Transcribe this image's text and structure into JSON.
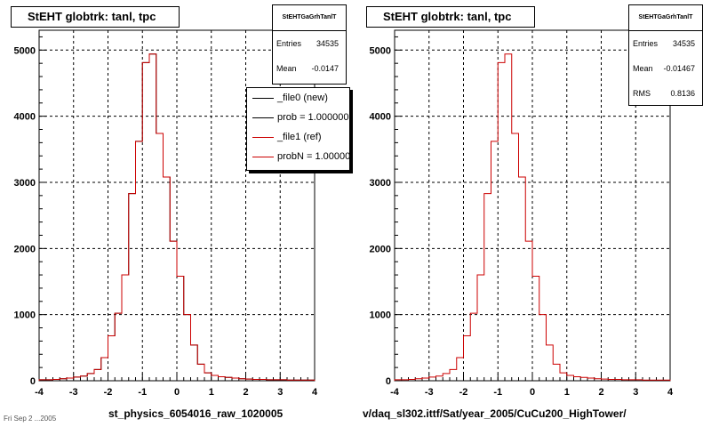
{
  "footer": "Fri Sep  2 ...2005",
  "panels": [
    {
      "title": "StEHT globtrk: tanl, tpc",
      "stats": {
        "name": "StEHTGaGrhTanlT",
        "rows": [
          {
            "label": "Entries",
            "value": "34535"
          },
          {
            "label": "Mean",
            "value": "-0.0147"
          }
        ]
      },
      "legend": [
        {
          "label": "_file0 (new)",
          "color": "#000000"
        },
        {
          "label": "prob = 1.000000",
          "color": "#000000"
        },
        {
          "label": "_file1 (ref)",
          "color": "#cc0000"
        },
        {
          "label": "probN = 1.000000",
          "color": "#cc0000"
        }
      ],
      "xlabel": "st_physics_6054016_raw_1020005"
    },
    {
      "title": "StEHT globtrk: tanl, tpc",
      "stats": {
        "name": "StEHTGaGrhTanlT",
        "rows": [
          {
            "label": "Entries",
            "value": "34535"
          },
          {
            "label": "Mean",
            "value": "-0.01467"
          },
          {
            "label": "RMS",
            "value": "0.8136"
          }
        ]
      },
      "legend": [],
      "xlabel": "v/daq_sl302.ittf/Sat/year_2005/CuCu200_HighTower/"
    }
  ],
  "chart_data": [
    {
      "type": "histogram",
      "title": "StEHT globtrk: tanl, tpc",
      "xlabel": "st_physics_6054016_raw_1020005",
      "xlim": [
        -4,
        4
      ],
      "ylim": [
        0,
        5300
      ],
      "xticks": [
        -4,
        -3,
        -2,
        -1,
        0,
        1,
        2,
        3,
        4
      ],
      "yticks": [
        0,
        1000,
        2000,
        3000,
        4000,
        5000
      ],
      "grid": true,
      "bin_edges": [
        -4.0,
        -3.8,
        -3.6,
        -3.4,
        -3.2,
        -3.0,
        -2.8,
        -2.6,
        -2.4,
        -2.2,
        -2.0,
        -1.8,
        -1.6,
        -1.4,
        -1.2,
        -1.0,
        -0.8,
        -0.6,
        -0.4,
        -0.2,
        0.0,
        0.2,
        0.4,
        0.6,
        0.8,
        1.0,
        1.2,
        1.4,
        1.6,
        1.8,
        2.0,
        2.2,
        2.4,
        2.6,
        2.8,
        3.0,
        3.2,
        3.4,
        3.6,
        3.8,
        4.0
      ],
      "series": [
        {
          "name": "_file0 (new)",
          "color": "#000000",
          "values": [
            15,
            15,
            20,
            30,
            40,
            55,
            70,
            110,
            170,
            350,
            680,
            1020,
            1600,
            2830,
            3620,
            4810,
            4940,
            3740,
            3080,
            2110,
            1580,
            1000,
            540,
            250,
            120,
            80,
            60,
            50,
            40,
            30,
            25,
            20,
            20,
            15,
            15,
            15,
            10,
            10,
            10,
            10
          ]
        },
        {
          "name": "_file1 (ref)",
          "color": "#cc0000",
          "values": [
            15,
            15,
            20,
            30,
            40,
            55,
            70,
            110,
            170,
            350,
            680,
            1020,
            1600,
            2830,
            3620,
            4810,
            4940,
            3740,
            3080,
            2110,
            1580,
            1000,
            540,
            250,
            120,
            80,
            60,
            50,
            40,
            30,
            25,
            20,
            20,
            15,
            15,
            15,
            10,
            10,
            10,
            10
          ]
        }
      ]
    },
    {
      "type": "histogram",
      "title": "StEHT globtrk: tanl, tpc",
      "xlabel": "v/daq_sl302.ittf/Sat/year_2005/CuCu200_HighTower/",
      "xlim": [
        -4,
        4
      ],
      "ylim": [
        0,
        5300
      ],
      "xticks": [
        -4,
        -3,
        -2,
        -1,
        0,
        1,
        2,
        3,
        4
      ],
      "yticks": [
        0,
        1000,
        2000,
        3000,
        4000,
        5000
      ],
      "grid": true,
      "bin_edges": [
        -4.0,
        -3.8,
        -3.6,
        -3.4,
        -3.2,
        -3.0,
        -2.8,
        -2.6,
        -2.4,
        -2.2,
        -2.0,
        -1.8,
        -1.6,
        -1.4,
        -1.2,
        -1.0,
        -0.8,
        -0.6,
        -0.4,
        -0.2,
        0.0,
        0.2,
        0.4,
        0.6,
        0.8,
        1.0,
        1.2,
        1.4,
        1.6,
        1.8,
        2.0,
        2.2,
        2.4,
        2.6,
        2.8,
        3.0,
        3.2,
        3.4,
        3.6,
        3.8,
        4.0
      ],
      "series": [
        {
          "name": "",
          "color": "#cc0000",
          "values": [
            15,
            15,
            20,
            30,
            40,
            55,
            70,
            110,
            170,
            350,
            680,
            1020,
            1600,
            2830,
            3620,
            4810,
            4940,
            3740,
            3080,
            2110,
            1580,
            1000,
            540,
            250,
            120,
            80,
            60,
            50,
            40,
            30,
            25,
            20,
            20,
            15,
            15,
            15,
            10,
            10,
            10,
            10
          ]
        }
      ]
    }
  ]
}
